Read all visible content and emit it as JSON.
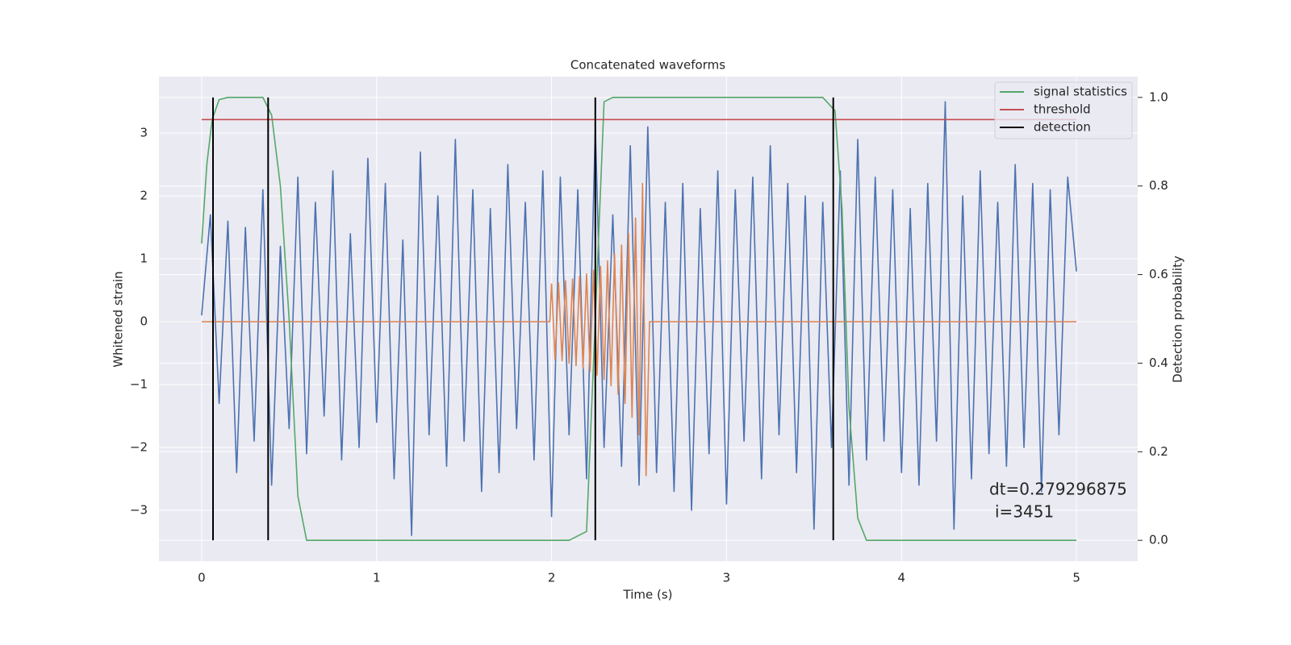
{
  "chart_data": {
    "type": "line",
    "title": "Concatenated waveforms",
    "xlabel": "Time (s)",
    "ylabel": "Whitened strain",
    "y2label": "Detection probability",
    "xlim": [
      -0.244,
      5.35
    ],
    "xticks": [
      0,
      1,
      2,
      3,
      4,
      5
    ],
    "ylim": [
      -3.81,
      3.9
    ],
    "yticks": [
      {
        "value": -3,
        "label": "−3"
      },
      {
        "value": -2,
        "label": "−2"
      },
      {
        "value": -1,
        "label": "−1"
      },
      0,
      1,
      2,
      3
    ],
    "y2lim": [
      -0.047,
      1.047
    ],
    "y2ticks": [
      {
        "value": 0,
        "label": "0.0"
      },
      0.2,
      0.4,
      0.6,
      0.8,
      {
        "value": 1,
        "label": "1.0"
      }
    ],
    "grid": true,
    "legend": "upper right",
    "annotations": [
      "dt=0.279296875",
      "i=3451"
    ],
    "series": [
      {
        "color": "#4c72b0",
        "x": [
          0,
          0.05,
          0.1,
          0.15,
          0.2,
          0.25,
          0.3,
          0.35,
          0.4,
          0.45,
          0.5,
          0.55,
          0.6,
          0.65,
          0.7,
          0.75,
          0.8,
          0.85,
          0.9,
          0.95,
          1,
          1.05,
          1.1,
          1.15,
          1.2,
          1.25,
          1.3,
          1.35,
          1.4,
          1.45,
          1.5,
          1.55,
          1.6,
          1.65,
          1.7,
          1.75,
          1.8,
          1.85,
          1.9,
          1.95,
          2,
          2.05,
          2.1,
          2.15,
          2.2,
          2.25,
          2.3,
          2.35,
          2.4,
          2.45,
          2.5,
          2.55,
          2.6,
          2.65,
          2.7,
          2.75,
          2.8,
          2.85,
          2.9,
          2.95,
          3,
          3.05,
          3.1,
          3.15,
          3.2,
          3.25,
          3.3,
          3.35,
          3.4,
          3.45,
          3.5,
          3.55,
          3.6,
          3.65,
          3.7,
          3.75,
          3.8,
          3.85,
          3.9,
          3.95,
          4,
          4.05,
          4.1,
          4.15,
          4.2,
          4.25,
          4.3,
          4.35,
          4.4,
          4.45,
          4.5,
          4.55,
          4.6,
          4.65,
          4.7,
          4.75,
          4.8,
          4.85,
          4.9,
          4.95,
          5
        ],
        "values": [
          0.1,
          1.7,
          -1.3,
          1.6,
          -2.4,
          1.5,
          -1.9,
          2.1,
          -2.6,
          1.2,
          -1.7,
          2.3,
          -2.1,
          1.9,
          -1.5,
          2.4,
          -2.2,
          1.4,
          -2.0,
          2.6,
          -1.6,
          2.2,
          -2.5,
          1.3,
          -3.4,
          2.7,
          -1.8,
          2.0,
          -2.3,
          2.9,
          -1.9,
          2.1,
          -2.7,
          1.8,
          -2.4,
          2.5,
          -1.7,
          1.9,
          -2.2,
          2.4,
          -3.1,
          2.3,
          -1.8,
          2.1,
          -2.5,
          3.1,
          -2.0,
          1.7,
          -2.3,
          2.8,
          -2.6,
          3.1,
          -2.4,
          1.9,
          -2.7,
          2.2,
          -3.0,
          1.8,
          -2.1,
          2.4,
          -2.9,
          2.1,
          -1.9,
          2.3,
          -2.5,
          2.8,
          -1.8,
          2.2,
          -2.4,
          2.0,
          -3.3,
          1.9,
          -2.0,
          2.4,
          -2.6,
          2.9,
          -2.2,
          2.3,
          -1.9,
          2.1,
          -2.4,
          1.8,
          -2.6,
          2.2,
          -1.9,
          3.5,
          -3.3,
          2.0,
          -2.5,
          2.4,
          -2.1,
          1.9,
          -2.3,
          2.5,
          -2.0,
          2.2,
          -2.7,
          2.1,
          -1.8,
          2.3,
          0.8
        ]
      },
      {
        "color": "#dd8452",
        "x": [
          0,
          1.99,
          2.0,
          2.02,
          2.04,
          2.06,
          2.08,
          2.1,
          2.12,
          2.14,
          2.16,
          2.18,
          2.2,
          2.22,
          2.24,
          2.26,
          2.28,
          2.3,
          2.32,
          2.34,
          2.36,
          2.38,
          2.4,
          2.42,
          2.44,
          2.46,
          2.48,
          2.5,
          2.52,
          2.54,
          2.56,
          5
        ],
        "values": [
          0,
          0,
          0.6,
          -0.6,
          0.62,
          -0.62,
          0.65,
          -0.66,
          0.68,
          -0.7,
          0.72,
          -0.74,
          0.76,
          -0.79,
          0.82,
          -0.85,
          0.88,
          -0.92,
          0.97,
          -1.02,
          1.08,
          -1.15,
          1.22,
          -1.3,
          1.4,
          -1.52,
          1.65,
          -1.8,
          2.2,
          -2.45,
          0,
          0
        ]
      },
      {
        "name": "signal statistics",
        "color": "#55a868",
        "axis": "y2",
        "x": [
          0,
          0.03,
          0.06,
          0.1,
          0.15,
          0.35,
          0.4,
          0.45,
          0.5,
          0.55,
          0.6,
          2.1,
          2.2,
          2.25,
          2.3,
          2.35,
          3.55,
          3.62,
          3.66,
          3.7,
          3.75,
          3.8,
          5
        ],
        "values": [
          0.67,
          0.85,
          0.95,
          0.995,
          1.0,
          1.0,
          0.96,
          0.8,
          0.5,
          0.1,
          0.0,
          0.0,
          0.02,
          0.5,
          0.99,
          1.0,
          1.0,
          0.97,
          0.75,
          0.3,
          0.05,
          0.0,
          0.0
        ]
      },
      {
        "name": "threshold",
        "color": "#c44e52",
        "axis": "y2",
        "x": [
          0,
          5
        ],
        "values": [
          0.95,
          0.95
        ]
      },
      {
        "name": "detection",
        "color": "#000000",
        "axis": "y2",
        "type": "vlines",
        "x": [
          0.065,
          0.38,
          2.25,
          3.61
        ],
        "values": [
          1,
          1,
          1,
          1
        ]
      }
    ]
  }
}
